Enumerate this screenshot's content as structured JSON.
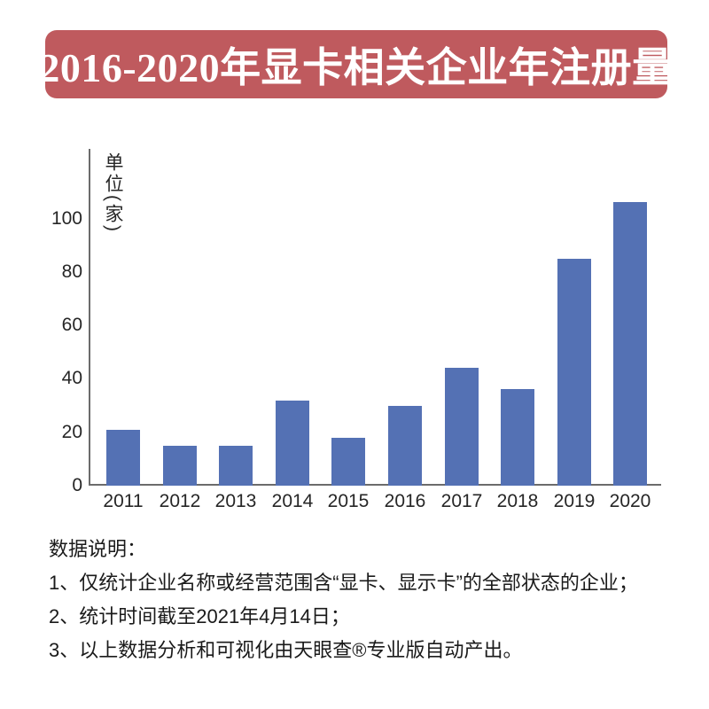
{
  "title": "2016-2020年显卡相关企业年注册量",
  "colors": {
    "banner": "#bf5a5e",
    "bar": "#5471b4",
    "axis": "#6b6b6b",
    "ink": "#262626"
  },
  "chart_data": {
    "type": "bar",
    "categories": [
      "2011",
      "2012",
      "2013",
      "2014",
      "2015",
      "2016",
      "2017",
      "2018",
      "2019",
      "2020"
    ],
    "values": [
      21,
      15,
      15,
      32,
      18,
      30,
      44,
      36,
      85,
      106
    ],
    "title": "2016-2020年显卡相关企业年注册量",
    "xlabel": "",
    "ylabel": "单位(家)",
    "yticks": [
      0,
      20,
      40,
      60,
      80,
      100
    ],
    "ylim": [
      0,
      125
    ],
    "grid": false,
    "legend": "none"
  },
  "notes": {
    "heading": "数据说明：",
    "items": [
      "1、仅统计企业名称或经营范围含“显卡、显示卡”的全部状态的企业；",
      "2、统计时间截至2021年4月14日；",
      "3、以上数据分析和可视化由天眼查®专业版自动产出。"
    ]
  }
}
